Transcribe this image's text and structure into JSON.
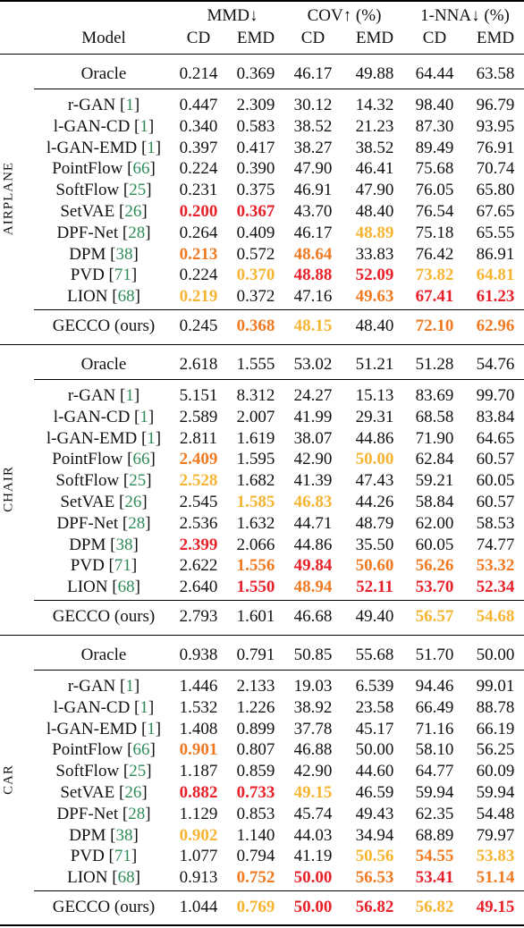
{
  "colors": {
    "first": "#e8222b",
    "second": "#f07a22",
    "third": "#f5b533",
    "ref": "#2e8b57"
  },
  "header": {
    "model": "Model",
    "groups": [
      {
        "label": "MMD↓",
        "sub": [
          "CD",
          "EMD"
        ]
      },
      {
        "label": "COV↑ (%)",
        "sub": [
          "CD",
          "EMD"
        ]
      },
      {
        "label": "1-NNA↓ (%)",
        "sub": [
          "CD",
          "EMD"
        ]
      }
    ]
  },
  "sections": [
    {
      "name": "AIRPLANE",
      "oracle": {
        "model": "Oracle",
        "values": [
          "0.214",
          "0.369",
          "46.17",
          "49.88",
          "64.44",
          "63.58"
        ],
        "ranks": [
          0,
          0,
          0,
          0,
          0,
          0
        ]
      },
      "rows": [
        {
          "model": "r-GAN",
          "ref": "1",
          "values": [
            "0.447",
            "2.309",
            "30.12",
            "14.32",
            "98.40",
            "96.79"
          ],
          "ranks": [
            0,
            0,
            0,
            0,
            0,
            0
          ]
        },
        {
          "model": "l-GAN-CD",
          "ref": "1",
          "values": [
            "0.340",
            "0.583",
            "38.52",
            "21.23",
            "87.30",
            "93.95"
          ],
          "ranks": [
            0,
            0,
            0,
            0,
            0,
            0
          ]
        },
        {
          "model": "l-GAN-EMD",
          "ref": "1",
          "values": [
            "0.397",
            "0.417",
            "38.27",
            "38.52",
            "89.49",
            "76.91"
          ],
          "ranks": [
            0,
            0,
            0,
            0,
            0,
            0
          ]
        },
        {
          "model": "PointFlow",
          "ref": "66",
          "values": [
            "0.224",
            "0.390",
            "47.90",
            "46.41",
            "75.68",
            "70.74"
          ],
          "ranks": [
            0,
            0,
            0,
            0,
            0,
            0
          ]
        },
        {
          "model": "SoftFlow",
          "ref": "25",
          "values": [
            "0.231",
            "0.375",
            "46.91",
            "47.90",
            "76.05",
            "65.80"
          ],
          "ranks": [
            0,
            0,
            0,
            0,
            0,
            0
          ]
        },
        {
          "model": "SetVAE",
          "ref": "26",
          "values": [
            "0.200",
            "0.367",
            "43.70",
            "48.40",
            "76.54",
            "67.65"
          ],
          "ranks": [
            1,
            1,
            0,
            0,
            0,
            0
          ]
        },
        {
          "model": "DPF-Net",
          "ref": "28",
          "values": [
            "0.264",
            "0.409",
            "46.17",
            "48.89",
            "75.18",
            "65.55"
          ],
          "ranks": [
            0,
            0,
            0,
            3,
            0,
            0
          ]
        },
        {
          "model": "DPM",
          "ref": "38",
          "values": [
            "0.213",
            "0.572",
            "48.64",
            "33.83",
            "76.42",
            "86.91"
          ],
          "ranks": [
            2,
            0,
            2,
            0,
            0,
            0
          ]
        },
        {
          "model": "PVD",
          "ref": "71",
          "values": [
            "0.224",
            "0.370",
            "48.88",
            "52.09",
            "73.82",
            "64.81"
          ],
          "ranks": [
            0,
            3,
            1,
            1,
            3,
            3
          ]
        },
        {
          "model": "LION",
          "ref": "68",
          "values": [
            "0.219",
            "0.372",
            "47.16",
            "49.63",
            "67.41",
            "61.23"
          ],
          "ranks": [
            3,
            0,
            0,
            2,
            1,
            1
          ]
        }
      ],
      "ours": {
        "model": "GECCO (ours)",
        "values": [
          "0.245",
          "0.368",
          "48.15",
          "48.40",
          "72.10",
          "62.96"
        ],
        "ranks": [
          0,
          2,
          3,
          0,
          2,
          2
        ]
      }
    },
    {
      "name": "CHAIR",
      "oracle": {
        "model": "Oracle",
        "values": [
          "2.618",
          "1.555",
          "53.02",
          "51.21",
          "51.28",
          "54.76"
        ],
        "ranks": [
          0,
          0,
          0,
          0,
          0,
          0
        ]
      },
      "rows": [
        {
          "model": "r-GAN",
          "ref": "1",
          "values": [
            "5.151",
            "8.312",
            "24.27",
            "15.13",
            "83.69",
            "99.70"
          ],
          "ranks": [
            0,
            0,
            0,
            0,
            0,
            0
          ]
        },
        {
          "model": "l-GAN-CD",
          "ref": "1",
          "values": [
            "2.589",
            "2.007",
            "41.99",
            "29.31",
            "68.58",
            "83.84"
          ],
          "ranks": [
            0,
            0,
            0,
            0,
            0,
            0
          ]
        },
        {
          "model": "l-GAN-EMD",
          "ref": "1",
          "values": [
            "2.811",
            "1.619",
            "38.07",
            "44.86",
            "71.90",
            "64.65"
          ],
          "ranks": [
            0,
            0,
            0,
            0,
            0,
            0
          ]
        },
        {
          "model": "PointFlow",
          "ref": "66",
          "values": [
            "2.409",
            "1.595",
            "42.90",
            "50.00",
            "62.84",
            "60.57"
          ],
          "ranks": [
            2,
            0,
            0,
            3,
            0,
            0
          ]
        },
        {
          "model": "SoftFlow",
          "ref": "25",
          "values": [
            "2.528",
            "1.682",
            "41.39",
            "47.43",
            "59.21",
            "60.05"
          ],
          "ranks": [
            3,
            0,
            0,
            0,
            0,
            0
          ]
        },
        {
          "model": "SetVAE",
          "ref": "26",
          "values": [
            "2.545",
            "1.585",
            "46.83",
            "44.26",
            "58.84",
            "60.57"
          ],
          "ranks": [
            0,
            3,
            3,
            0,
            0,
            0
          ]
        },
        {
          "model": "DPF-Net",
          "ref": "28",
          "values": [
            "2.536",
            "1.632",
            "44.71",
            "48.79",
            "62.00",
            "58.53"
          ],
          "ranks": [
            0,
            0,
            0,
            0,
            0,
            0
          ]
        },
        {
          "model": "DPM",
          "ref": "38",
          "values": [
            "2.399",
            "2.066",
            "44.86",
            "35.50",
            "60.05",
            "74.77"
          ],
          "ranks": [
            1,
            0,
            0,
            0,
            0,
            0
          ]
        },
        {
          "model": "PVD",
          "ref": "71",
          "values": [
            "2.622",
            "1.556",
            "49.84",
            "50.60",
            "56.26",
            "53.32"
          ],
          "ranks": [
            0,
            2,
            1,
            2,
            2,
            2
          ]
        },
        {
          "model": "LION",
          "ref": "68",
          "values": [
            "2.640",
            "1.550",
            "48.94",
            "52.11",
            "53.70",
            "52.34"
          ],
          "ranks": [
            0,
            1,
            2,
            1,
            1,
            1
          ]
        }
      ],
      "ours": {
        "model": "GECCO (ours)",
        "values": [
          "2.793",
          "1.601",
          "46.68",
          "49.40",
          "56.57",
          "54.68"
        ],
        "ranks": [
          0,
          0,
          0,
          0,
          3,
          3
        ]
      }
    },
    {
      "name": "CAR",
      "oracle": {
        "model": "Oracle",
        "values": [
          "0.938",
          "0.791",
          "50.85",
          "55.68",
          "51.70",
          "50.00"
        ],
        "ranks": [
          0,
          0,
          0,
          0,
          0,
          0
        ]
      },
      "rows": [
        {
          "model": "r-GAN",
          "ref": "1",
          "values": [
            "1.446",
            "2.133",
            "19.03",
            "6.539",
            "94.46",
            "99.01"
          ],
          "ranks": [
            0,
            0,
            0,
            0,
            0,
            0
          ]
        },
        {
          "model": "l-GAN-CD",
          "ref": "1",
          "values": [
            "1.532",
            "1.226",
            "38.92",
            "23.58",
            "66.49",
            "88.78"
          ],
          "ranks": [
            0,
            0,
            0,
            0,
            0,
            0
          ]
        },
        {
          "model": "l-GAN-EMD",
          "ref": "1",
          "values": [
            "1.408",
            "0.899",
            "37.78",
            "45.17",
            "71.16",
            "66.19"
          ],
          "ranks": [
            0,
            0,
            0,
            0,
            0,
            0
          ]
        },
        {
          "model": "PointFlow",
          "ref": "66",
          "values": [
            "0.901",
            "0.807",
            "46.88",
            "50.00",
            "58.10",
            "56.25"
          ],
          "ranks": [
            2,
            0,
            0,
            0,
            0,
            0
          ]
        },
        {
          "model": "SoftFlow",
          "ref": "25",
          "values": [
            "1.187",
            "0.859",
            "42.90",
            "44.60",
            "64.77",
            "60.09"
          ],
          "ranks": [
            0,
            0,
            0,
            0,
            0,
            0
          ]
        },
        {
          "model": "SetVAE",
          "ref": "26",
          "values": [
            "0.882",
            "0.733",
            "49.15",
            "46.59",
            "59.94",
            "59.94"
          ],
          "ranks": [
            1,
            1,
            3,
            0,
            0,
            0
          ]
        },
        {
          "model": "DPF-Net",
          "ref": "28",
          "values": [
            "1.129",
            "0.853",
            "45.74",
            "49.43",
            "62.35",
            "54.48"
          ],
          "ranks": [
            0,
            0,
            0,
            0,
            0,
            0
          ]
        },
        {
          "model": "DPM",
          "ref": "38",
          "values": [
            "0.902",
            "1.140",
            "44.03",
            "34.94",
            "68.89",
            "79.97"
          ],
          "ranks": [
            3,
            0,
            0,
            0,
            0,
            0
          ]
        },
        {
          "model": "PVD",
          "ref": "71",
          "values": [
            "1.077",
            "0.794",
            "41.19",
            "50.56",
            "54.55",
            "53.83"
          ],
          "ranks": [
            0,
            0,
            0,
            3,
            2,
            3
          ]
        },
        {
          "model": "LION",
          "ref": "68",
          "values": [
            "0.913",
            "0.752",
            "50.00",
            "56.53",
            "53.41",
            "51.14"
          ],
          "ranks": [
            0,
            2,
            1,
            2,
            1,
            2
          ]
        }
      ],
      "ours": {
        "model": "GECCO (ours)",
        "values": [
          "1.044",
          "0.769",
          "50.00",
          "56.82",
          "56.82",
          "49.15"
        ],
        "ranks": [
          0,
          3,
          1,
          1,
          3,
          1
        ]
      }
    }
  ]
}
